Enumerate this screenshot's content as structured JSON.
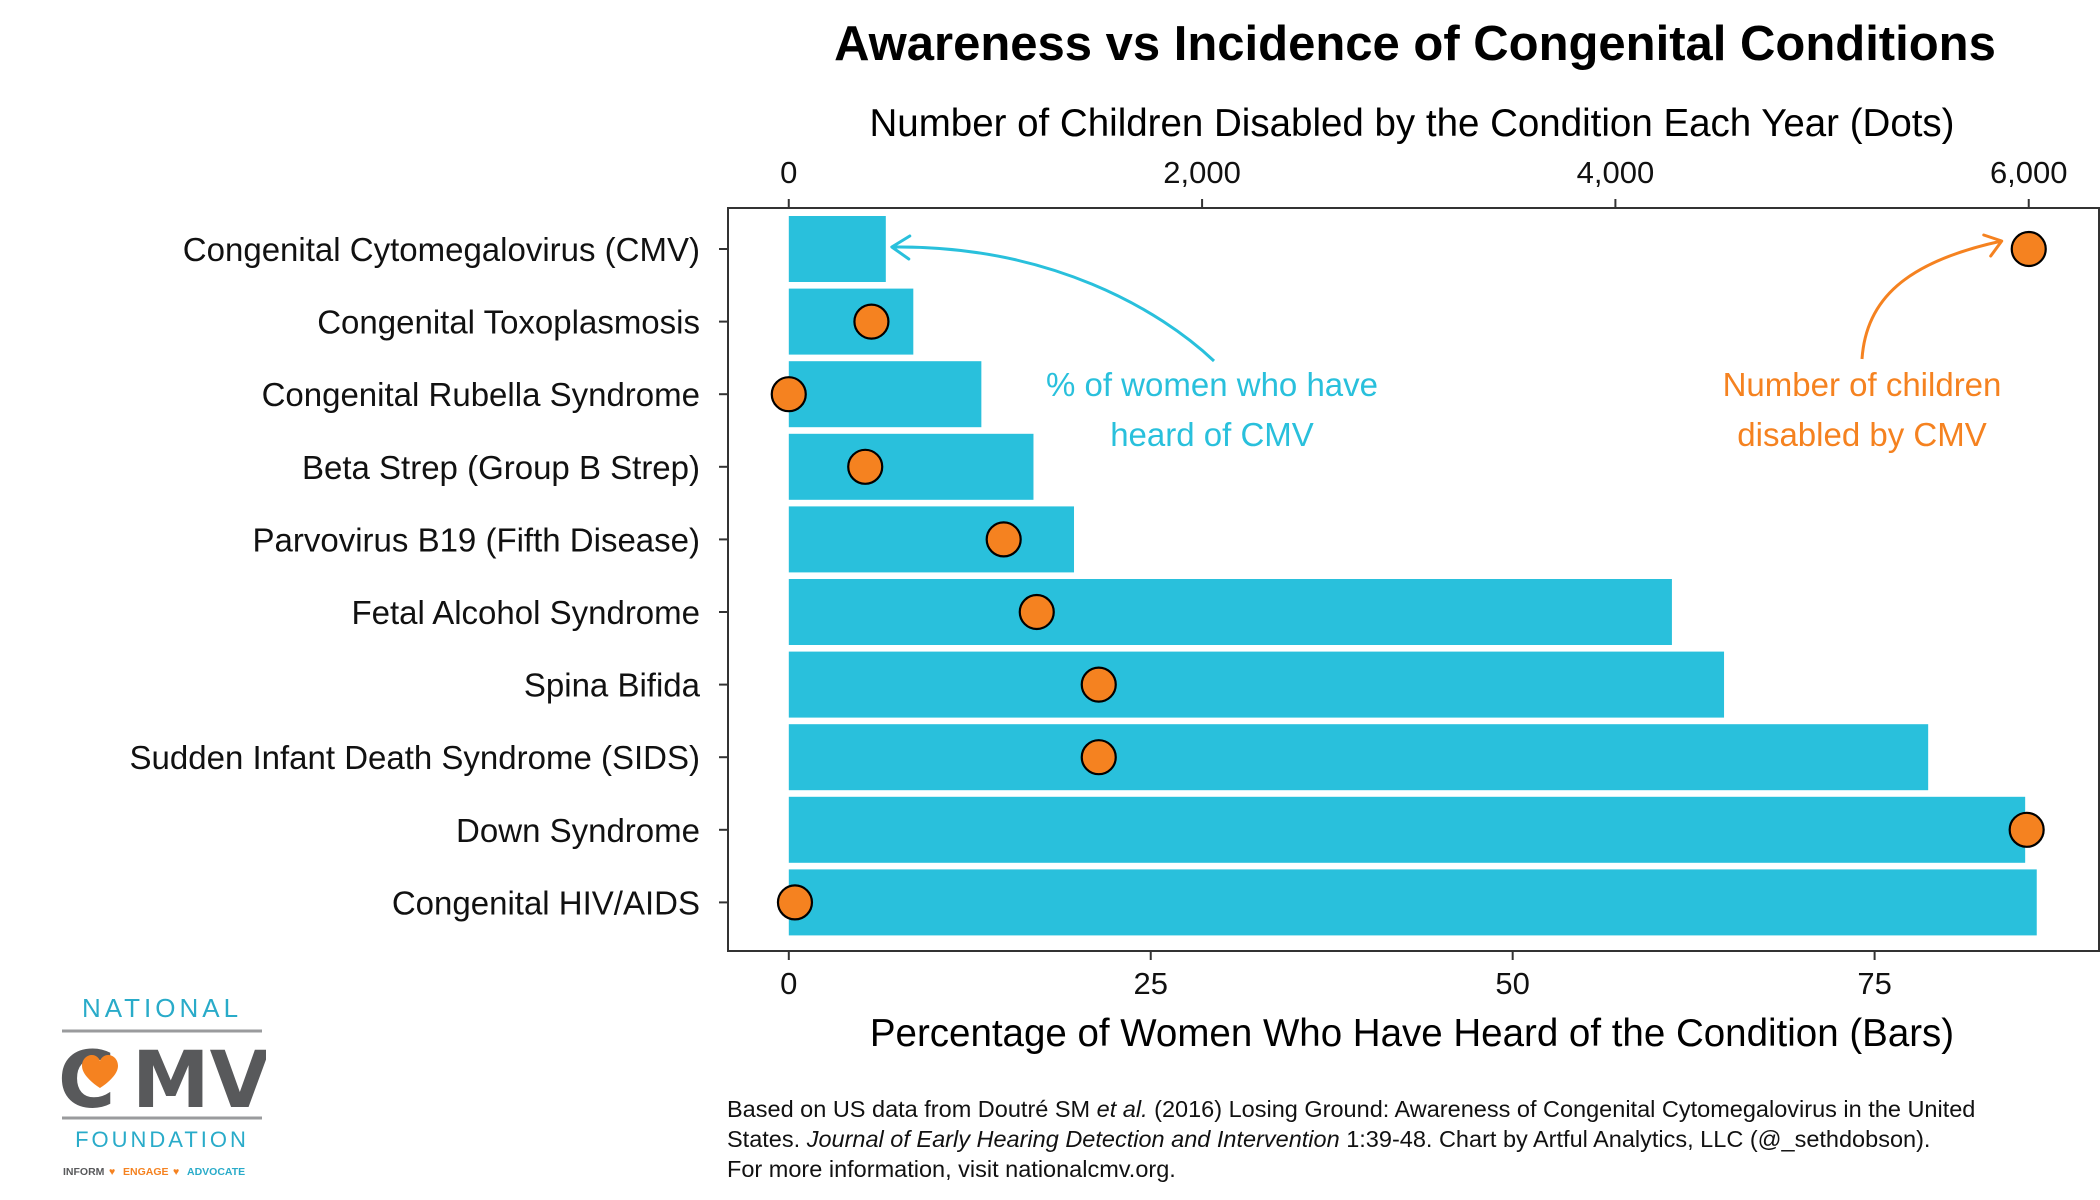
{
  "chart_data": {
    "type": "bar",
    "orientation": "horizontal",
    "title": "Awareness vs Incidence of Congenital Conditions",
    "categories": [
      "Congenital Cytomegalovirus (CMV)",
      "Congenital Toxoplasmosis",
      "Congenital Rubella Syndrome",
      "Beta Strep (Group B Strep)",
      "Parvovirus B19 (Fifth Disease)",
      "Fetal Alcohol Syndrome",
      "Spina Bifida",
      "Sudden Infant Death Syndrome (SIDS)",
      "Down Syndrome",
      "Congenital HIV/AIDS"
    ],
    "series": [
      {
        "name": "Percentage of Women Who Have Heard of the Condition (Bars)",
        "mark": "bar",
        "axis": "bottom",
        "color": "#29C0DC",
        "values": [
          6.7,
          8.6,
          13.3,
          16.9,
          19.7,
          61.0,
          64.6,
          78.7,
          85.4,
          86.2
        ]
      },
      {
        "name": "Number of Children Disabled by the Condition Each Year (Dots)",
        "mark": "point",
        "axis": "top",
        "color": "#F58220",
        "values": [
          6000,
          400,
          0,
          370,
          1040,
          1200,
          1500,
          1500,
          5990,
          30
        ]
      }
    ],
    "xlabel": "Percentage of Women Who Have Heard of the Condition (Bars)",
    "x_ticks": [
      0,
      25,
      50,
      75
    ],
    "xlim": [
      -4.2,
      90.5
    ],
    "x2label": "Number of Children Disabled by the Condition Each Year (Dots)",
    "x2_ticks": [
      0,
      2000,
      4000,
      6000
    ],
    "x2_tick_labels": [
      "0",
      "2,000",
      "4,000",
      "6,000"
    ],
    "x2lim": [
      -294,
      6340
    ],
    "grid": false,
    "annotations": [
      {
        "text_lines": [
          "% of women who have",
          "heard of CMV"
        ],
        "color": "#29C0DC",
        "points_to": {
          "category": "Congenital Cytomegalovirus (CMV)",
          "series": "bars"
        }
      },
      {
        "text_lines": [
          "Number of children",
          "disabled by CMV"
        ],
        "color": "#F58220",
        "points_to": {
          "category": "Congenital Cytomegalovirus (CMV)",
          "series": "dots"
        }
      }
    ]
  },
  "caption": {
    "line1_pre": "Based on US data from Doutré SM ",
    "line1_italic": "et al.",
    "line1_post": " (2016) Losing Ground: Awareness of Congenital Cytomegalovirus in the United",
    "line2_pre": "States. ",
    "line2_italic": "Journal of Early Hearing Detection and Intervention",
    "line2_post": " 1:39-48. Chart by Artful Analytics, LLC (@_sethdobson).",
    "line3": "For more information, visit nationalcmv.org."
  },
  "logo": {
    "top_word": "NATIONAL",
    "main_word_pre": "C",
    "main_word_post": "MV",
    "bottom_word": "FOUNDATION",
    "tagline_1": "INFORM",
    "tagline_2": "ENGAGE",
    "tagline_3": "ADVOCATE",
    "colors": {
      "teal": "#29ABC9",
      "gray": "#58595B",
      "orange": "#F58220"
    },
    "icon": "heart-icon"
  }
}
